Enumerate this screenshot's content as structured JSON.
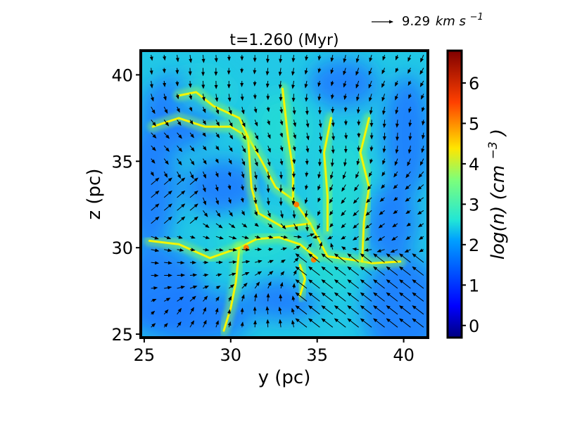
{
  "chart_data": {
    "type": "heatmap",
    "title": "t=1.260 (Myr)",
    "xlabel": "y (pc)",
    "ylabel": "z (pc)",
    "xlim": [
      24.8,
      41.4
    ],
    "ylim": [
      24.8,
      41.4
    ],
    "xticks": [
      "25",
      "30",
      "35",
      "40"
    ],
    "xtick_values": [
      25,
      30,
      35,
      40
    ],
    "yticks": [
      "25",
      "30",
      "35",
      "40"
    ],
    "ytick_values": [
      25,
      30,
      35,
      40
    ],
    "colorbar": {
      "label_main": "log(n) (cm",
      "label_sup": "−3",
      "label_close": ")",
      "range": [
        -0.3,
        6.8
      ],
      "ticks": [
        "0",
        "1",
        "2",
        "3",
        "4",
        "5",
        "6"
      ],
      "tick_values": [
        0,
        1,
        2,
        3,
        4,
        5,
        6
      ],
      "colormap": "jet"
    },
    "vector_key": {
      "value": "9.29",
      "unit_main": "km s",
      "unit_sup": "−1"
    },
    "field_description_colors": {
      "background_low": "#1f7bff",
      "mid": "#22e0d0",
      "filament": "#f5f500",
      "dense_core": "#ff7a00"
    },
    "filaments": [
      [
        [
          25.5,
          37.0
        ],
        [
          27.0,
          37.5
        ],
        [
          28.5,
          37.0
        ],
        [
          30.0,
          37.0
        ],
        [
          31.0,
          36.4
        ],
        [
          31.8,
          35.0
        ],
        [
          32.6,
          33.5
        ],
        [
          33.6,
          32.8
        ],
        [
          34.6,
          31.4
        ],
        [
          35.6,
          29.5
        ],
        [
          37.0,
          29.3
        ],
        [
          38.2,
          29.1
        ],
        [
          39.8,
          29.2
        ]
      ],
      [
        [
          31.0,
          36.4
        ],
        [
          31.2,
          33.5
        ],
        [
          31.6,
          32.0
        ],
        [
          33.0,
          31.2
        ],
        [
          34.6,
          31.4
        ]
      ],
      [
        [
          27.0,
          38.8
        ],
        [
          28.0,
          39.0
        ],
        [
          29.0,
          38.2
        ],
        [
          30.5,
          37.5
        ],
        [
          31.0,
          36.4
        ]
      ],
      [
        [
          33.0,
          39.2
        ],
        [
          33.3,
          36.5
        ],
        [
          33.6,
          34.5
        ],
        [
          33.6,
          32.8
        ]
      ],
      [
        [
          30.5,
          30.0
        ],
        [
          31.5,
          30.5
        ],
        [
          32.8,
          30.6
        ],
        [
          34.0,
          30.2
        ],
        [
          35.0,
          29.4
        ]
      ],
      [
        [
          30.5,
          30.0
        ],
        [
          30.3,
          28.0
        ],
        [
          30.0,
          26.5
        ],
        [
          29.6,
          25.2
        ]
      ],
      [
        [
          25.3,
          30.4
        ],
        [
          27.0,
          30.2
        ],
        [
          28.8,
          29.4
        ],
        [
          30.5,
          30.0
        ]
      ],
      [
        [
          34.0,
          29.0
        ],
        [
          34.3,
          28.2
        ],
        [
          34.0,
          27.2
        ]
      ],
      [
        [
          37.6,
          29.2
        ],
        [
          37.7,
          31.5
        ],
        [
          38.0,
          33.5
        ],
        [
          37.5,
          35.5
        ],
        [
          38.0,
          37.5
        ]
      ],
      [
        [
          35.8,
          37.5
        ],
        [
          35.4,
          35.5
        ],
        [
          35.6,
          33.0
        ],
        [
          35.6,
          31.0
        ]
      ]
    ],
    "dense_cores": [
      {
        "x": 30.9,
        "y": 30.0,
        "value": 5.0
      },
      {
        "x": 34.8,
        "y": 29.3,
        "value": 5.0
      },
      {
        "x": 33.8,
        "y": 32.5,
        "value": 4.8
      }
    ]
  }
}
